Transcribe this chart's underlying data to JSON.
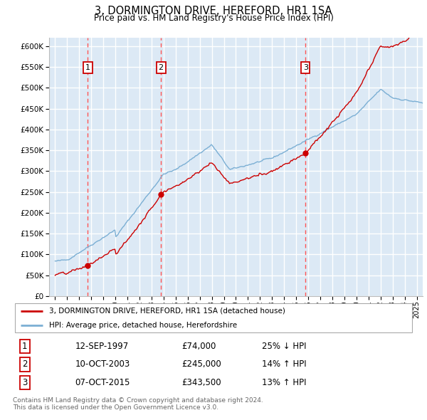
{
  "title": "3, DORMINGTON DRIVE, HEREFORD, HR1 1SA",
  "subtitle": "Price paid vs. HM Land Registry's House Price Index (HPI)",
  "ylim": [
    0,
    620000
  ],
  "yticks": [
    0,
    50000,
    100000,
    150000,
    200000,
    250000,
    300000,
    350000,
    400000,
    450000,
    500000,
    550000,
    600000
  ],
  "xlim_start": 1994.5,
  "xlim_end": 2025.5,
  "background_color": "#dce9f5",
  "grid_color": "#ffffff",
  "red_line_color": "#cc0000",
  "blue_line_color": "#7bafd4",
  "sale_marker_color": "#cc0000",
  "dashed_line_color": "#ff5555",
  "transactions": [
    {
      "num": 1,
      "date_dec": 1997.71,
      "price": 74000
    },
    {
      "num": 2,
      "date_dec": 2003.78,
      "price": 245000
    },
    {
      "num": 3,
      "date_dec": 2015.77,
      "price": 343500
    }
  ],
  "footer_line1": "Contains HM Land Registry data © Crown copyright and database right 2024.",
  "footer_line2": "This data is licensed under the Open Government Licence v3.0.",
  "legend_line1": "3, DORMINGTON DRIVE, HEREFORD, HR1 1SA (detached house)",
  "legend_line2": "HPI: Average price, detached house, Herefordshire",
  "table_rows": [
    [
      "1",
      "12-SEP-1997",
      "£74,000",
      "25% ↓ HPI"
    ],
    [
      "2",
      "10-OCT-2003",
      "£245,000",
      "14% ↑ HPI"
    ],
    [
      "3",
      "07-OCT-2015",
      "£343,500",
      "13% ↑ HPI"
    ]
  ]
}
